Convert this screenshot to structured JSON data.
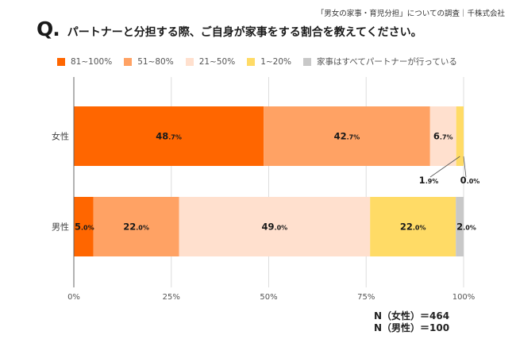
{
  "header": {
    "source": "「男女の家事・育児分担」についての調査｜千株式会社",
    "q_mark": "Q.",
    "question": "パートナーと分担する際、ご自身が家事をする割合を教えてください。"
  },
  "chart_data": {
    "type": "bar",
    "orientation": "horizontal-stacked-100",
    "title": "パートナーと分担する際、ご自身が家事をする割合を教えてください。",
    "categories": [
      "女性",
      "男性"
    ],
    "series": [
      {
        "name": "81~100%",
        "color": "#FF6600",
        "values": [
          48.7,
          5.0
        ],
        "labels": [
          "48.7%",
          "5.0%"
        ]
      },
      {
        "name": "51~80%",
        "color": "#FFA264",
        "values": [
          42.7,
          22.0
        ],
        "labels": [
          "42.7%",
          "22.0%"
        ]
      },
      {
        "name": "21~50%",
        "color": "#FFE0CE",
        "values": [
          6.7,
          49.0
        ],
        "labels": [
          "6.7%",
          "49.0%"
        ]
      },
      {
        "name": "1~20%",
        "color": "#FFDB66",
        "values": [
          1.9,
          22.0
        ],
        "labels": [
          "1.9%",
          "22.0%"
        ]
      },
      {
        "name": "家事はすべてパートナーが行っている",
        "color": "#C8C8C8",
        "values": [
          0.0,
          2.0
        ],
        "labels": [
          "0.0%",
          "2.0%"
        ]
      }
    ],
    "xlim": [
      0,
      100
    ],
    "xticks": [
      "0%",
      "25%",
      "50%",
      "75%",
      "100%"
    ],
    "xtick_values": [
      0,
      25,
      50,
      75,
      100
    ],
    "grid": true,
    "legend_position": "top",
    "xlabel": "",
    "ylabel": ""
  },
  "footer": {
    "n_female": "N（女性）＝464",
    "n_male": "N（男性）＝100"
  }
}
